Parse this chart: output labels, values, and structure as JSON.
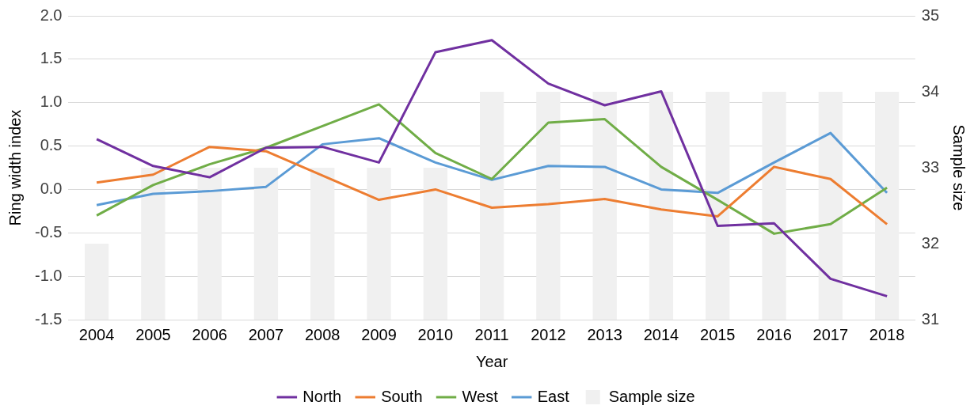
{
  "chart_data": {
    "type": "line",
    "xlabel": "Year",
    "ylabel": "Ring width index",
    "y2label": "Sample size",
    "categories": [
      "2004",
      "2005",
      "2006",
      "2007",
      "2008",
      "2009",
      "2010",
      "2011",
      "2012",
      "2013",
      "2014",
      "2015",
      "2016",
      "2017",
      "2018"
    ],
    "series": [
      {
        "name": "Sample size",
        "type": "bar",
        "axis": "y2",
        "color": "#f0f0f0",
        "values": [
          32,
          33,
          33,
          33,
          33,
          33,
          33,
          34,
          34,
          34,
          34,
          34,
          34,
          34,
          34
        ]
      },
      {
        "name": "North",
        "color": "#7030a0",
        "values": [
          0.58,
          0.27,
          0.14,
          0.48,
          0.49,
          0.31,
          1.58,
          1.72,
          1.22,
          0.97,
          1.13,
          -0.42,
          -0.39,
          -1.03,
          -1.23
        ]
      },
      {
        "name": "South",
        "color": "#ed7d31",
        "values": [
          0.08,
          0.17,
          0.49,
          0.44,
          0.16,
          -0.12,
          0.0,
          -0.21,
          -0.17,
          -0.11,
          -0.23,
          -0.31,
          0.26,
          0.12,
          -0.4
        ]
      },
      {
        "name": "West",
        "color": "#70ad47",
        "values": [
          -0.3,
          0.05,
          0.29,
          0.48,
          0.73,
          0.98,
          0.42,
          0.12,
          0.77,
          0.81,
          0.26,
          -0.12,
          -0.51,
          -0.4,
          0.02
        ]
      },
      {
        "name": "East",
        "color": "#5b9bd5",
        "values": [
          -0.18,
          -0.05,
          -0.02,
          0.03,
          0.52,
          0.59,
          0.31,
          0.11,
          0.27,
          0.26,
          0.0,
          -0.04,
          0.31,
          0.65,
          -0.04
        ]
      }
    ],
    "ylim": [
      -1.5,
      2.0
    ],
    "yticks": [
      {
        "value": -1.5,
        "label": "-1.5"
      },
      {
        "value": -1,
        "label": "-1.0"
      },
      {
        "value": -0.5,
        "label": "-0.5"
      },
      {
        "value": 0,
        "label": "0.0"
      },
      {
        "value": 0.5,
        "label": "0.5"
      },
      {
        "value": 1,
        "label": "1.0"
      },
      {
        "value": 1.5,
        "label": "1.5"
      },
      {
        "value": 2,
        "label": "2.0"
      }
    ],
    "y2lim": [
      31,
      35
    ],
    "y2ticks": [
      31,
      32,
      33,
      34,
      35
    ],
    "grid": "y",
    "legend": "bottom",
    "marker": "none",
    "line_style": "solid"
  }
}
